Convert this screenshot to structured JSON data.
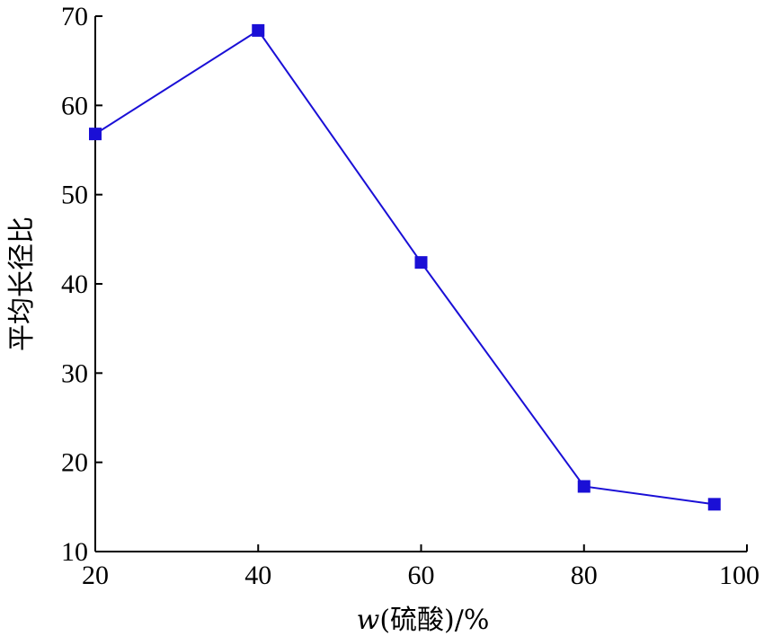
{
  "chart_data": {
    "type": "line",
    "title": "",
    "xlabel": "w(硫酸)/%",
    "xlabel_parts": {
      "symbol": "w",
      "rest": "(硫酸)/%"
    },
    "ylabel": "平均长径比",
    "xlim": [
      20,
      100
    ],
    "ylim": [
      10,
      70
    ],
    "xticks": [
      20,
      40,
      60,
      80,
      100
    ],
    "yticks": [
      10,
      20,
      30,
      40,
      50,
      60,
      70
    ],
    "grid": false,
    "legend": "none",
    "series": [
      {
        "color": "#1a0fd6",
        "marker": "square",
        "x": [
          20,
          40,
          60,
          80,
          96
        ],
        "y": [
          56.8,
          68.4,
          42.4,
          17.3,
          15.3
        ]
      }
    ]
  }
}
